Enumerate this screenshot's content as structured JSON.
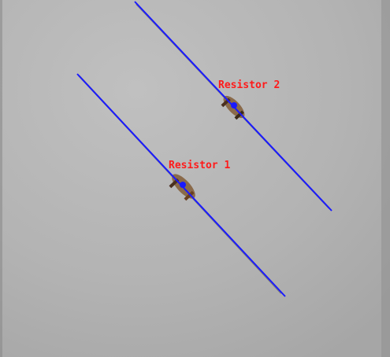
{
  "image": {
    "background_color": "#b4b4b4",
    "overlay_line_color": "#1a1aff",
    "marker_color": "#1a1aff",
    "label_color": "#ff1a1a"
  },
  "detections": [
    {
      "label": "Resistor 1"
    },
    {
      "label": "Resistor 2"
    }
  ]
}
